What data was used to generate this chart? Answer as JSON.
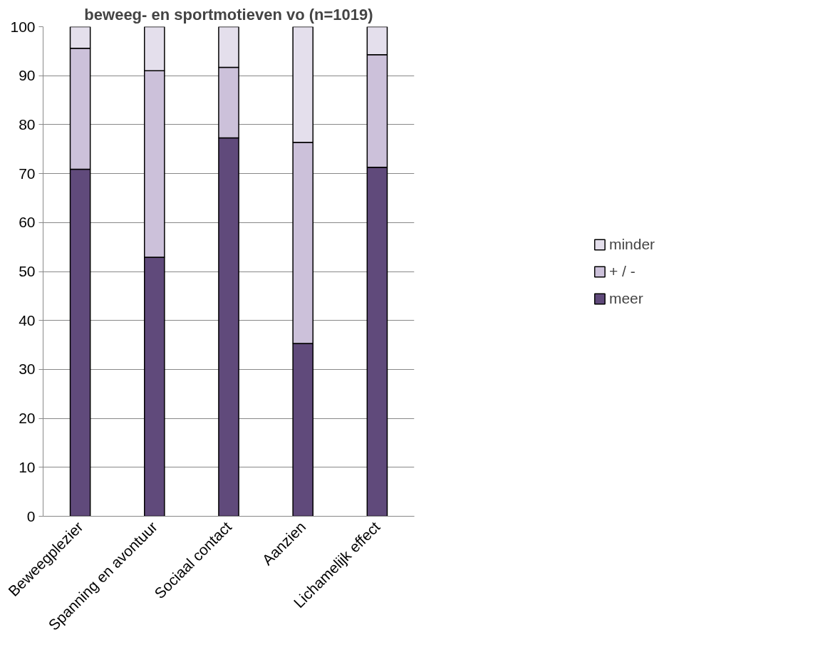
{
  "chart_data": {
    "type": "bar",
    "title": "beweeg- en sportmotieven vo (n=1019)",
    "stacked": true,
    "categories": [
      "Beweegplezier",
      "Spanning en avontuur",
      "Sociaal contact",
      "Aanzien",
      "Lichamelijk effect"
    ],
    "series": [
      {
        "name": "meer",
        "color": "#604a7b",
        "values": [
          70.9,
          52.9,
          77.3,
          35.3,
          71.3
        ]
      },
      {
        "name": "+ / -",
        "color": "#ccc1da",
        "values": [
          24.7,
          38.1,
          14.4,
          41.1,
          23.0
        ]
      },
      {
        "name": "minder",
        "color": "#e4dfec",
        "values": [
          4.4,
          9.0,
          8.3,
          23.6,
          5.7
        ]
      }
    ],
    "ylim": [
      0,
      100
    ],
    "yticks": [
      0,
      10,
      20,
      30,
      40,
      50,
      60,
      70,
      80,
      90,
      100
    ],
    "grid": "y",
    "legend": "right"
  }
}
